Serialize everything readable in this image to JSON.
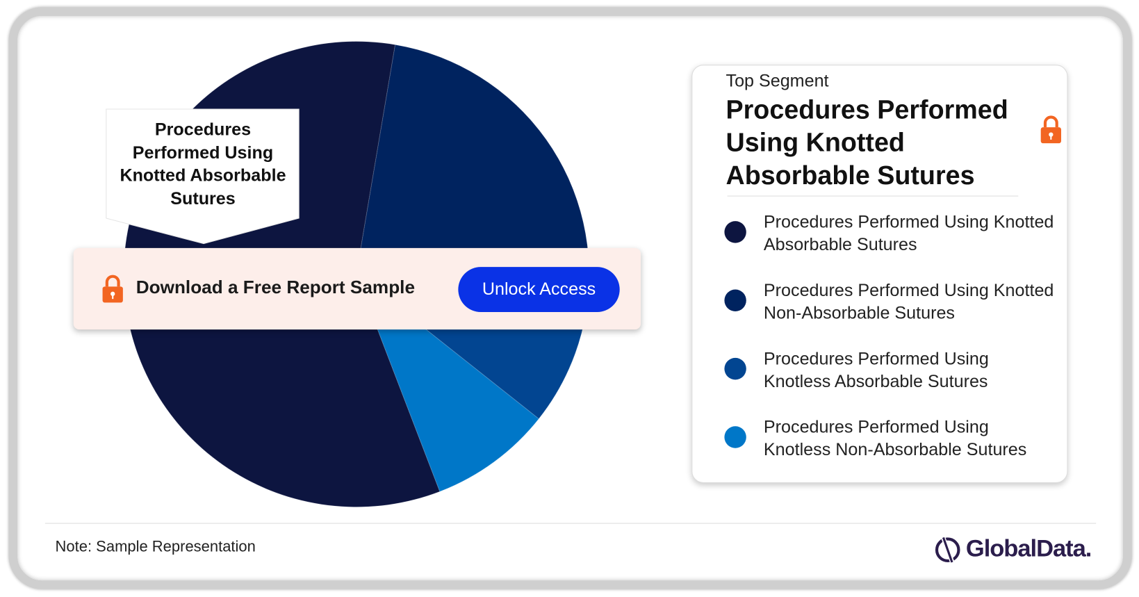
{
  "chart_data": {
    "type": "pie",
    "categories": [
      "Procedures Performed Using Knotted Absorbable Sutures",
      "Procedures Performed Using Knotted Non-Absorbable Sutures",
      "Procedures Performed Using Knotless Absorbable Sutures",
      "Procedures Performed Using Knotless Non-Absorbable Sutures"
    ],
    "values": [
      58.5,
      25,
      8,
      8.5
    ],
    "colors": [
      "#0d1540",
      "#00235f",
      "#024591",
      "#0077c8"
    ]
  },
  "banner": {
    "text": "Download a Free Report Sample",
    "button": "Unlock Access"
  },
  "top_segment": {
    "label": "Top Segment"
  },
  "note": "Note: Sample Representation",
  "logo": "GlobalData."
}
